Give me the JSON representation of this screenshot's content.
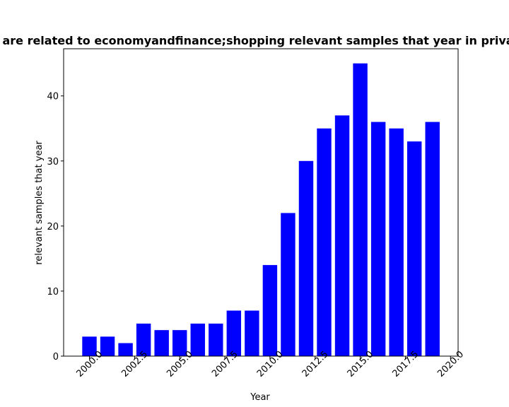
{
  "chart_data": {
    "type": "bar",
    "title": "are related to economyandfinance;shopping relevant samples that year in priva",
    "xlabel": "Year",
    "ylabel": "relevant samples that year",
    "bar_color": "#0000ff",
    "x": [
      2000,
      2001,
      2002,
      2003,
      2004,
      2005,
      2006,
      2007,
      2008,
      2009,
      2010,
      2011,
      2012,
      2013,
      2014,
      2015,
      2016,
      2017,
      2018,
      2019
    ],
    "values": [
      3,
      3,
      2,
      5,
      4,
      4,
      5,
      5,
      7,
      7,
      14,
      22,
      30,
      35,
      37,
      45,
      36,
      35,
      33,
      36
    ],
    "xlim": [
      1998.57,
      2020.42
    ],
    "ylim": [
      0,
      47.25
    ],
    "bar_width": 0.8,
    "xticks": [
      2000.0,
      2002.5,
      2005.0,
      2007.5,
      2010.0,
      2012.5,
      2015.0,
      2017.5,
      2020.0
    ],
    "xtick_labels": [
      "2000.0",
      "2002.5",
      "2005.0",
      "2007.5",
      "2010.0",
      "2012.5",
      "2015.0",
      "2017.5",
      "2020.0"
    ],
    "yticks": [
      0,
      10,
      20,
      30,
      40
    ],
    "ytick_labels": [
      "0",
      "10",
      "20",
      "30",
      "40"
    ],
    "grid": false,
    "legend": "none"
  }
}
